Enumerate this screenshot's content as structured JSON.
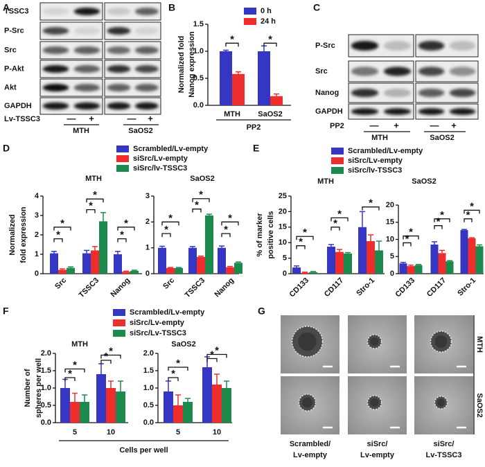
{
  "blots": [
    {
      "panel": "A",
      "rows": [
        "TSSC3",
        "P-Src",
        "Src",
        "P-Akt",
        "Akt",
        "GAPDH"
      ],
      "treatment": "Lv-TSSC3",
      "signs": [
        "—",
        "+",
        "—",
        "+"
      ],
      "groups": [
        "MTH",
        "SaOS2"
      ]
    },
    {
      "panel": "C",
      "rows": [
        "P-Src",
        "Src",
        "Nanog",
        "GAPDH"
      ],
      "treatment": "PP2",
      "signs": [
        "—",
        "+",
        "—",
        "+"
      ],
      "groups": [
        "MTH",
        "SaOS2"
      ]
    }
  ],
  "images": {
    "panel": "G",
    "rows": [
      "MTH",
      "SaOS2"
    ],
    "captions": [
      [
        "Scrambled/",
        "Lv-empty"
      ],
      [
        "siSrc/",
        "Lv-empty"
      ],
      [
        "siSrc/",
        "Lv-TSSC3"
      ]
    ]
  },
  "chart_data": [
    {
      "panel": "B",
      "type": "bar",
      "ylabel": [
        "Normalized fold",
        "Nanog expression"
      ],
      "categories": [
        "MTH",
        "SaOS2"
      ],
      "group_label": "PP2",
      "series": [
        {
          "name": "0 h",
          "color": "#3636c4",
          "values": [
            1.0,
            1.0
          ],
          "errors": [
            0.02,
            0.1
          ]
        },
        {
          "name": "24 h",
          "color": "#ee2d2d",
          "values": [
            0.58,
            0.17
          ],
          "errors": [
            0.04,
            0.04
          ]
        }
      ],
      "ylim": [
        0,
        1.5
      ],
      "yticks": [
        {
          "value": 0,
          "label": "0.0"
        },
        0.5,
        {
          "value": 1,
          "label": "1.0"
        },
        1.5
      ],
      "annotations": [
        "*",
        "*"
      ]
    },
    {
      "panel": "D",
      "type": "bar",
      "title": "MTH",
      "ylabel": [
        "Normalized",
        "fold expression"
      ],
      "categories": [
        "Src",
        "TSSC3",
        "Nanog"
      ],
      "series": [
        {
          "name": "Scrambled/Lv-empty",
          "color": "#3636c4",
          "values": [
            1.05,
            1.05,
            1.0
          ],
          "errors": [
            0.1,
            0.15,
            0.15
          ]
        },
        {
          "name": "siSrc/Lv-empty",
          "color": "#ee2d2d",
          "values": [
            0.2,
            1.2,
            0.1
          ],
          "errors": [
            0.05,
            0.2,
            0.03
          ]
        },
        {
          "name": "siSrc/lv-TSSC3",
          "color": "#1b8a4c",
          "values": [
            0.3,
            2.7,
            0.15
          ],
          "errors": [
            0.05,
            0.45,
            0.03
          ]
        }
      ],
      "ylim": [
        0,
        4
      ],
      "yticks": [
        0,
        1,
        2,
        3,
        4
      ],
      "annotations": [
        "*",
        "*",
        "*",
        "*",
        "*",
        "*"
      ]
    },
    {
      "type": "bar",
      "title": "SaOS2",
      "categories": [
        "Src",
        "TSSC3",
        "Nanog"
      ],
      "series": [
        {
          "color": "#3636c4",
          "values": [
            1.0,
            1.0,
            1.0
          ],
          "errors": [
            0.06,
            0.05,
            0.07
          ]
        },
        {
          "color": "#ee2d2d",
          "values": [
            0.22,
            0.65,
            0.25
          ],
          "errors": [
            0.02,
            0.03,
            0.03
          ]
        },
        {
          "color": "#1b8a4c",
          "values": [
            0.22,
            2.25,
            0.42
          ],
          "errors": [
            0.02,
            0.05,
            0.03
          ]
        }
      ],
      "ylim": [
        0,
        3
      ],
      "yticks": [
        0,
        1,
        2,
        3
      ],
      "annotations": [
        "*",
        "*",
        "*",
        "*",
        "*",
        "*"
      ]
    },
    {
      "panel": "E",
      "type": "bar",
      "title": "MTH",
      "ylabel": [
        "% of marker",
        "positive cells"
      ],
      "categories": [
        "CD133",
        "CD117",
        "Stro-1"
      ],
      "series": [
        {
          "name": "Scrambled/Lv-empty",
          "color": "#3636c4",
          "values": [
            2,
            8.7,
            15
          ],
          "errors": [
            0.5,
            0.7,
            5
          ]
        },
        {
          "name": "siSrc/Lv-empty",
          "color": "#ee2d2d",
          "values": [
            0.3,
            7,
            10.5
          ],
          "errors": [
            0.2,
            0.8,
            2
          ]
        },
        {
          "name": "siSrc/lv-TSSC3",
          "color": "#1b8a4c",
          "values": [
            0.5,
            6.5,
            7.5
          ],
          "errors": [
            0.2,
            0.3,
            3
          ]
        }
      ],
      "ylim": [
        0,
        25
      ],
      "yticks": [
        0,
        5,
        10,
        15,
        20,
        25
      ],
      "annotations": [
        "*",
        "*",
        "*",
        "*",
        "*"
      ]
    },
    {
      "type": "bar",
      "title": "SaOS2",
      "categories": [
        "CD133",
        "CD117",
        "Stro-1"
      ],
      "series": [
        {
          "color": "#3636c4",
          "values": [
            3,
            8.5,
            12.7
          ],
          "errors": [
            0.3,
            0.8,
            0.2
          ]
        },
        {
          "color": "#ee2d2d",
          "values": [
            2.2,
            6,
            10.3
          ],
          "errors": [
            0.3,
            0.8,
            0.2
          ]
        },
        {
          "color": "#1b8a4c",
          "values": [
            2.5,
            3.6,
            8
          ],
          "errors": [
            0.2,
            0.2,
            0.4
          ]
        }
      ],
      "ylim": [
        0,
        20
      ],
      "yticks": [
        0,
        5,
        10,
        15,
        20
      ],
      "annotations": [
        "*",
        "*",
        "*",
        "*",
        "*",
        "*"
      ]
    },
    {
      "panel": "F",
      "type": "bar",
      "title": "MTH",
      "ylabel": [
        "Number of",
        "spheres per well"
      ],
      "xlabel": "Cells per well",
      "categories": [
        "5",
        "10"
      ],
      "series": [
        {
          "name": "Scrambled/Lv-empty",
          "color": "#3636c4",
          "values": [
            1.0,
            1.4
          ],
          "errors": [
            0.25,
            0.3
          ]
        },
        {
          "name": "siSrc/Lv-empty",
          "color": "#ee2d2d",
          "values": [
            0.6,
            1.0
          ],
          "errors": [
            0.25,
            0.2
          ]
        },
        {
          "name": "siSrc/Lv-TSSC3",
          "color": "#1b8a4c",
          "values": [
            0.6,
            0.9
          ],
          "errors": [
            0.2,
            0.3
          ]
        }
      ],
      "ylim": [
        0,
        2
      ],
      "yticks": [
        {
          "value": 0,
          "label": "0.0"
        },
        0.5,
        {
          "value": 1,
          "label": "1.0"
        },
        1.5,
        {
          "value": 2,
          "label": "2.0"
        }
      ],
      "annotations": [
        "*",
        "*",
        "*",
        "*"
      ]
    },
    {
      "type": "bar",
      "title": "SaOS2",
      "categories": [
        "5",
        "10"
      ],
      "series": [
        {
          "color": "#3636c4",
          "values": [
            0.9,
            1.6
          ],
          "errors": [
            0.3,
            0.3
          ]
        },
        {
          "color": "#ee2d2d",
          "values": [
            0.5,
            1.1
          ],
          "errors": [
            0.3,
            0.3
          ]
        },
        {
          "color": "#1b8a4c",
          "values": [
            0.6,
            1.0
          ],
          "errors": [
            0.1,
            0.2
          ]
        }
      ],
      "ylim": [
        0,
        2
      ],
      "yticks": [
        {
          "value": 0,
          "label": "0.0"
        },
        0.5,
        {
          "value": 1,
          "label": "1.0"
        },
        1.5,
        {
          "value": 2,
          "label": "2.0"
        }
      ],
      "annotations": [
        "*",
        "*",
        "*",
        "*"
      ]
    }
  ]
}
